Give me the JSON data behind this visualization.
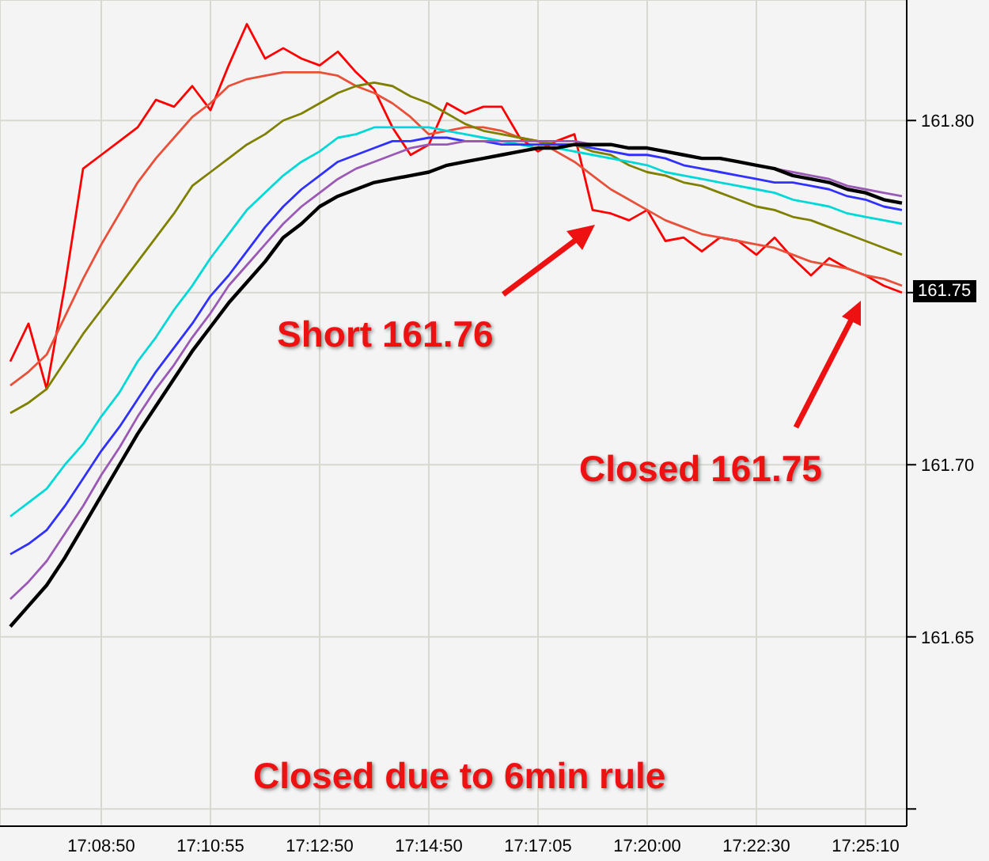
{
  "chart_data": {
    "type": "line",
    "categories": [
      null,
      null,
      null,
      null,
      null,
      "17:08:50",
      null,
      null,
      null,
      null,
      null,
      "17:10:55",
      null,
      null,
      null,
      null,
      null,
      "17:12:50",
      null,
      null,
      null,
      null,
      null,
      "17:14:50",
      null,
      null,
      null,
      null,
      null,
      "17:17:05",
      null,
      null,
      null,
      null,
      null,
      "17:20:00",
      null,
      null,
      null,
      null,
      null,
      "17:22:30",
      null,
      null,
      null,
      null,
      null,
      "17:25:10",
      null,
      null
    ],
    "series": [
      {
        "color": "#000000",
        "values": [
          161.653,
          161.659,
          161.665,
          161.673,
          161.682,
          161.691,
          161.7,
          161.709,
          161.717,
          161.725,
          161.733,
          161.74,
          161.747,
          161.753,
          161.759,
          161.766,
          161.77,
          161.775,
          161.778,
          161.78,
          161.782,
          161.783,
          161.784,
          161.785,
          161.787,
          161.788,
          161.789,
          161.79,
          161.791,
          161.792,
          161.792,
          161.793,
          161.793,
          161.793,
          161.792,
          161.792,
          161.791,
          161.79,
          161.789,
          161.789,
          161.788,
          161.787,
          161.786,
          161.784,
          161.783,
          161.782,
          161.78,
          161.779,
          161.777,
          161.776
        ]
      },
      {
        "color": "#9b59b6",
        "values": [
          161.661,
          161.666,
          161.672,
          161.68,
          161.688,
          161.697,
          161.705,
          161.714,
          161.722,
          161.729,
          161.737,
          161.744,
          161.752,
          161.758,
          161.764,
          161.77,
          161.775,
          161.779,
          161.783,
          161.786,
          161.788,
          161.79,
          161.792,
          161.793,
          161.793,
          161.794,
          161.794,
          161.794,
          161.794,
          161.794,
          161.794,
          161.794,
          161.793,
          161.793,
          161.792,
          161.792,
          161.791,
          161.79,
          161.789,
          161.789,
          161.788,
          161.787,
          161.786,
          161.785,
          161.784,
          161.783,
          161.781,
          161.78,
          161.779,
          161.778
        ]
      },
      {
        "color": "#3030ff",
        "values": [
          161.674,
          161.677,
          161.681,
          161.688,
          161.696,
          161.704,
          161.711,
          161.719,
          161.727,
          161.734,
          161.741,
          161.749,
          161.755,
          161.762,
          161.769,
          161.775,
          161.78,
          161.784,
          161.788,
          161.79,
          161.792,
          161.794,
          161.794,
          161.795,
          161.795,
          161.794,
          161.794,
          161.793,
          161.793,
          161.793,
          161.793,
          161.793,
          161.792,
          161.791,
          161.79,
          161.79,
          161.789,
          161.787,
          161.786,
          161.785,
          161.784,
          161.783,
          161.782,
          161.782,
          161.781,
          161.78,
          161.778,
          161.777,
          161.775,
          161.774
        ]
      },
      {
        "color": "#00d8d8",
        "values": [
          161.685,
          161.689,
          161.693,
          161.7,
          161.706,
          161.714,
          161.721,
          161.73,
          161.737,
          161.745,
          161.752,
          161.76,
          161.767,
          161.774,
          161.779,
          161.784,
          161.788,
          161.791,
          161.795,
          161.796,
          161.798,
          161.798,
          161.798,
          161.798,
          161.797,
          161.796,
          161.795,
          161.794,
          161.793,
          161.792,
          161.792,
          161.791,
          161.79,
          161.789,
          161.788,
          161.787,
          161.785,
          161.784,
          161.783,
          161.782,
          161.781,
          161.78,
          161.779,
          161.777,
          161.776,
          161.775,
          161.773,
          161.772,
          161.771,
          161.77
        ]
      },
      {
        "color": "#808000",
        "values": [
          161.715,
          161.718,
          161.722,
          161.73,
          161.738,
          161.745,
          161.752,
          161.759,
          161.766,
          161.773,
          161.781,
          161.785,
          161.789,
          161.793,
          161.796,
          161.8,
          161.802,
          161.805,
          161.808,
          161.81,
          161.811,
          161.81,
          161.807,
          161.805,
          161.802,
          161.799,
          161.797,
          161.796,
          161.795,
          161.794,
          161.793,
          161.793,
          161.791,
          161.79,
          161.787,
          161.785,
          161.784,
          161.782,
          161.781,
          161.779,
          161.777,
          161.775,
          161.774,
          161.772,
          161.771,
          161.769,
          161.767,
          161.765,
          161.763,
          161.761
        ]
      },
      {
        "color": "#e8503a",
        "values": [
          161.723,
          161.727,
          161.732,
          161.743,
          161.754,
          161.764,
          161.773,
          161.782,
          161.789,
          161.795,
          161.801,
          161.805,
          161.81,
          161.812,
          161.813,
          161.814,
          161.814,
          161.814,
          161.813,
          161.81,
          161.808,
          161.805,
          161.801,
          161.796,
          161.797,
          161.798,
          161.798,
          161.797,
          161.795,
          161.794,
          161.791,
          161.788,
          161.784,
          161.78,
          161.777,
          161.774,
          161.771,
          161.769,
          161.767,
          161.766,
          161.765,
          161.764,
          161.763,
          161.761,
          161.759,
          161.758,
          161.757,
          161.755,
          161.754,
          161.752
        ]
      },
      {
        "color": "#ff0000",
        "values": [
          161.73,
          161.741,
          161.722,
          161.752,
          161.786,
          161.79,
          161.794,
          161.798,
          161.806,
          161.804,
          161.81,
          161.803,
          161.816,
          161.828,
          161.818,
          161.821,
          161.818,
          161.816,
          161.82,
          161.814,
          161.809,
          161.798,
          161.79,
          161.793,
          161.805,
          161.802,
          161.804,
          161.804,
          161.795,
          161.791,
          161.794,
          161.796,
          161.774,
          161.773,
          161.771,
          161.774,
          161.765,
          161.766,
          161.762,
          161.766,
          161.765,
          161.761,
          161.766,
          161.76,
          161.755,
          161.76,
          161.757,
          161.755,
          161.752,
          161.75
        ]
      }
    ],
    "ylim": [
      161.595,
      161.835
    ],
    "yticks": [
      {
        "value": 161.6,
        "label": null
      },
      {
        "value": 161.65,
        "label": "161.65"
      },
      {
        "value": 161.7,
        "label": "161.70"
      },
      {
        "value": 161.75,
        "label": null
      },
      {
        "value": 161.8,
        "label": "161.80"
      }
    ],
    "grid": true,
    "marker": "none",
    "line_style": "solid",
    "annotations": [
      "Short 161.76",
      "Closed 161.75",
      "Closed due to 6min rule",
      "161.75"
    ]
  }
}
